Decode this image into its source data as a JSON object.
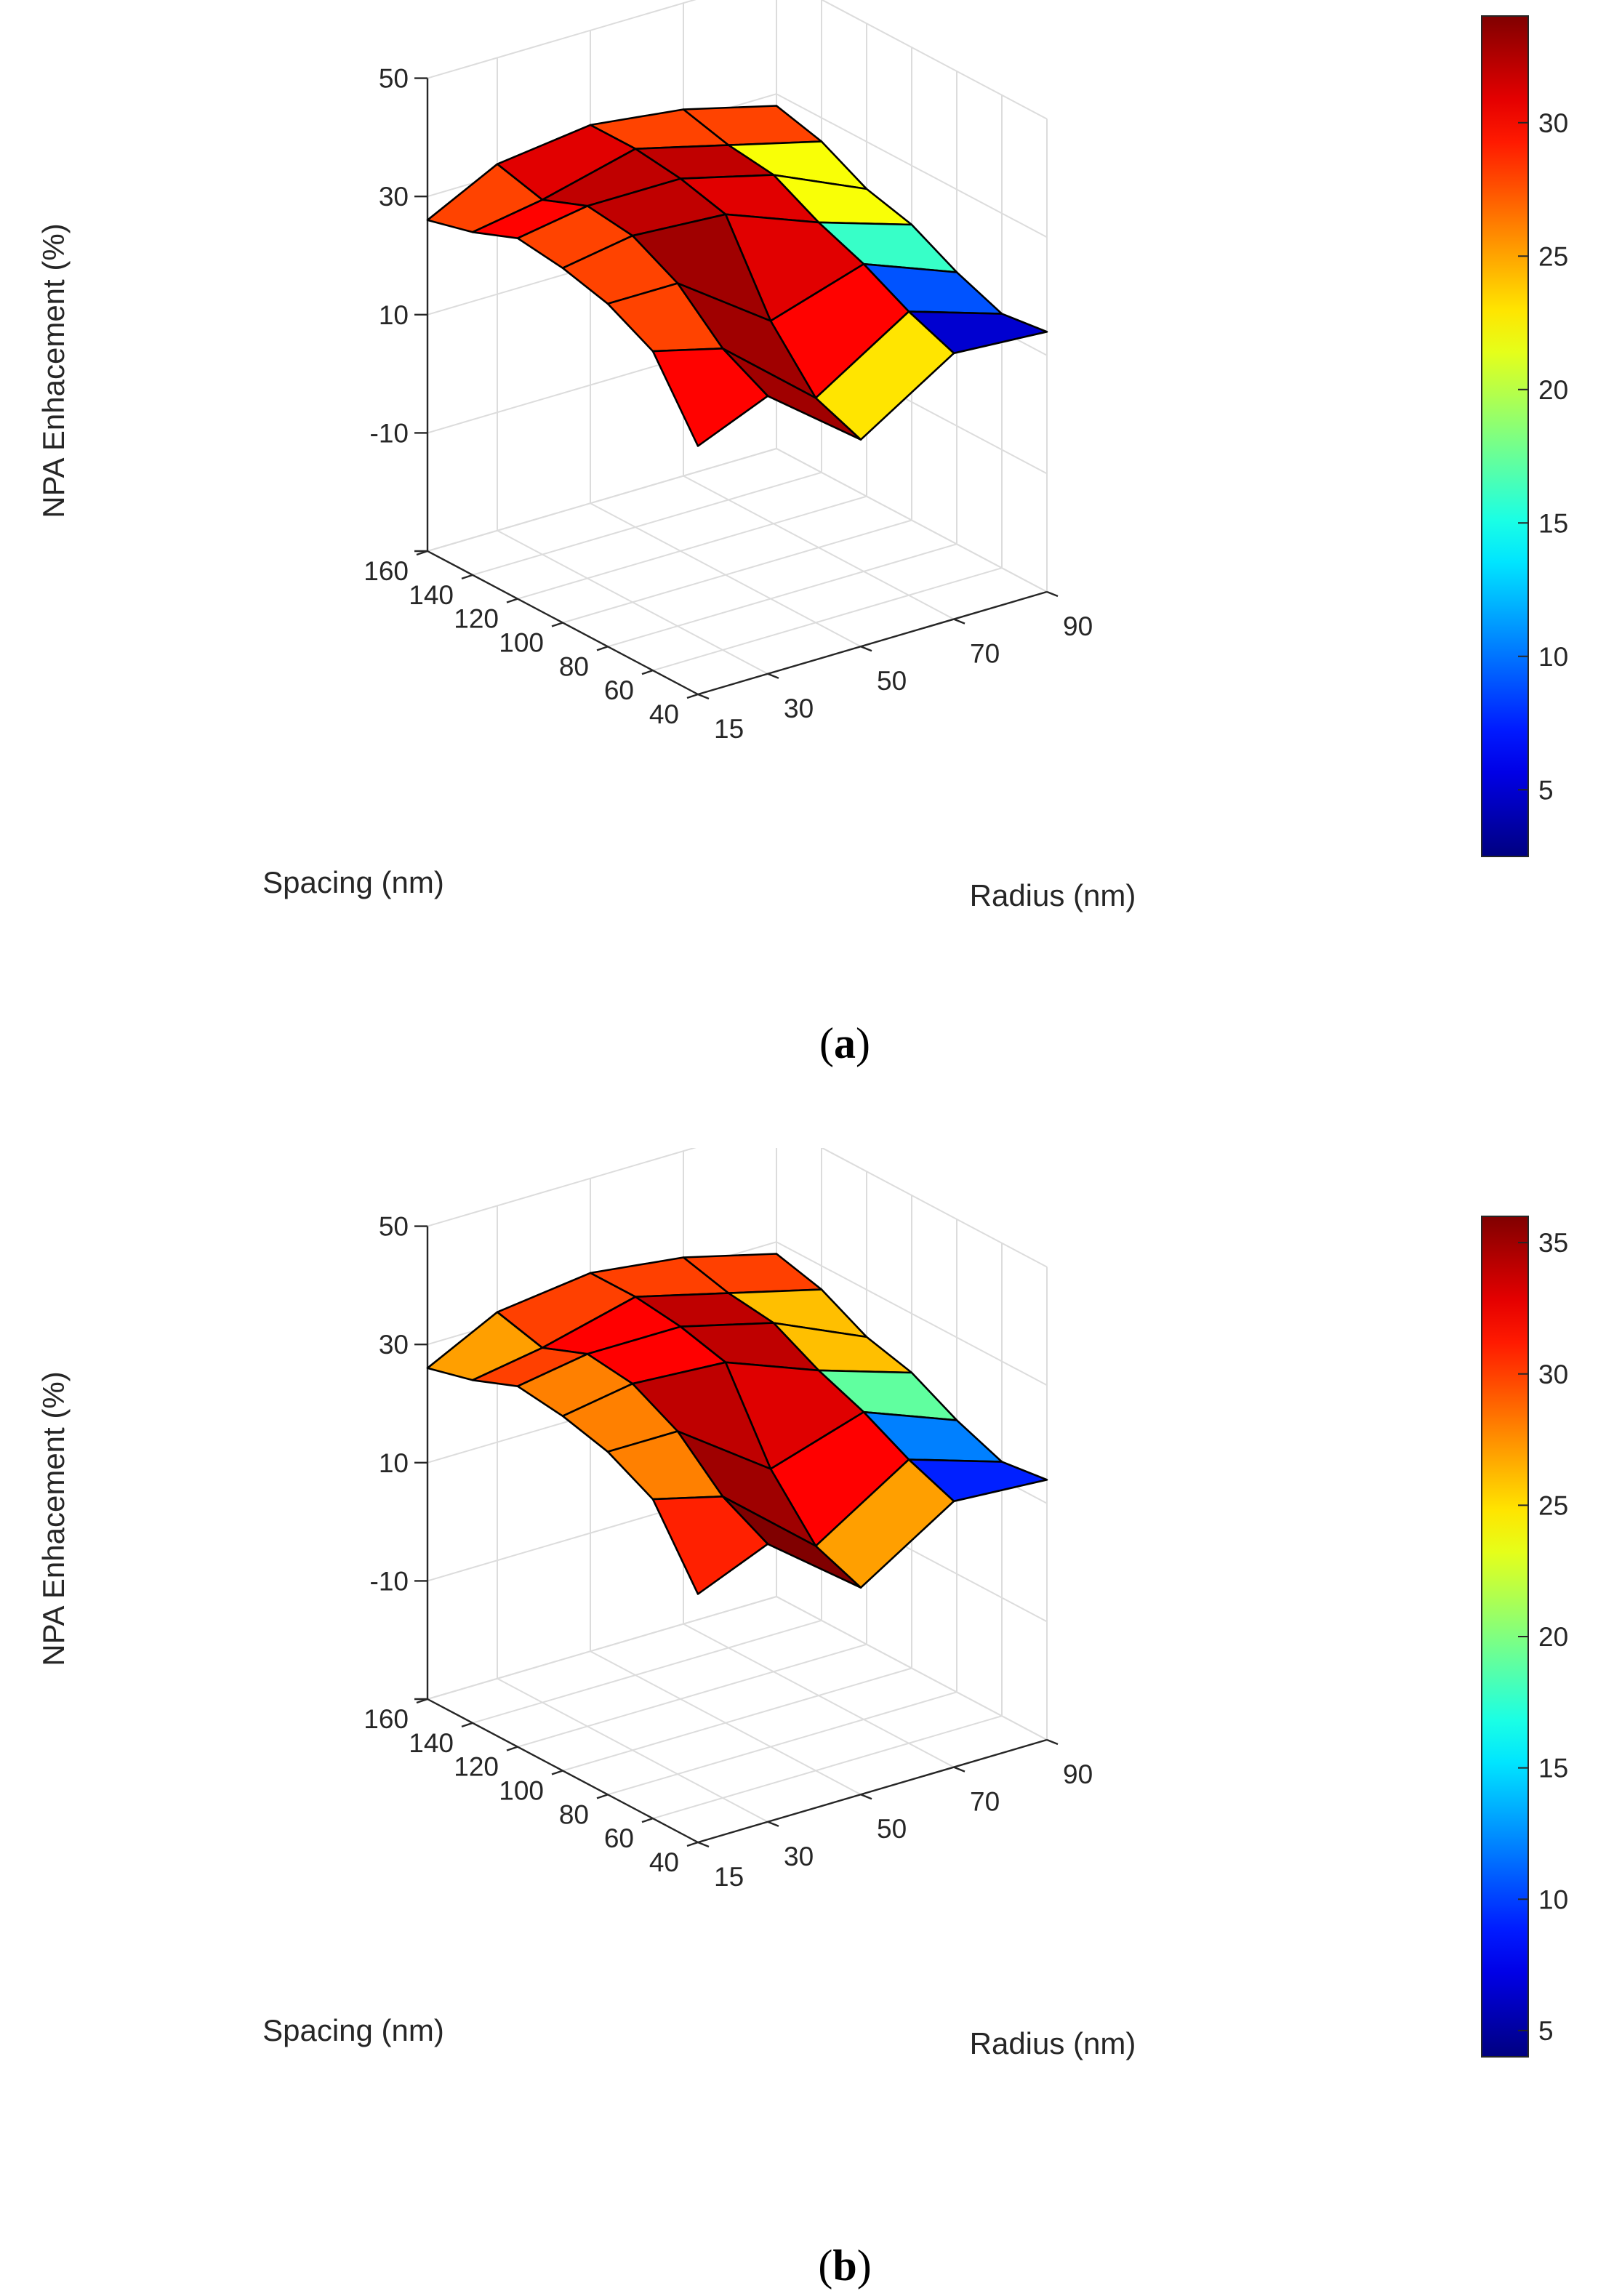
{
  "chart_data": [
    {
      "type": "surface",
      "caption_letter": "a",
      "zlabel": "NPA Enhacement (%)",
      "xlabel": "Spacing (nm)",
      "ylabel": "Radius (nm)",
      "spacing_ticks": [
        "160",
        "140",
        "120",
        "100",
        "80",
        "60",
        "40"
      ],
      "radius_ticks": [
        "15",
        "30",
        "50",
        "70",
        "90"
      ],
      "z_ticks": [
        "50",
        "30",
        "10",
        "-10"
      ],
      "zlim": [
        -30,
        50
      ],
      "colorbar": {
        "range": [
          2.5,
          34
        ],
        "ticks": [
          "30",
          "25",
          "20",
          "15",
          "10",
          "5"
        ]
      },
      "spacing": [
        40,
        60,
        80,
        100,
        120,
        140,
        160
      ],
      "radius": [
        15,
        30,
        50,
        70,
        90
      ],
      "z": [
        [
          12,
          17,
          5,
          15,
          14
        ],
        [
          24,
          21,
          8,
          18,
          13
        ],
        [
          28,
          28,
          17,
          22,
          16
        ],
        [
          30,
          32,
          31,
          25,
          20
        ],
        [
          31,
          33,
          33,
          29,
          22
        ],
        [
          28,
          30,
          34,
          30,
          26
        ],
        [
          26,
          32,
          34,
          32,
          28
        ]
      ],
      "cell_values": [
        [
          30,
          33,
          23,
          5
        ],
        [
          28,
          33,
          30,
          9
        ],
        [
          28,
          33,
          31,
          16
        ],
        [
          28,
          32,
          31,
          22
        ],
        [
          30,
          32,
          32,
          22
        ],
        [
          28,
          31,
          28,
          28
        ]
      ]
    },
    {
      "type": "surface",
      "caption_letter": "b",
      "zlabel": "NPA Enhacement (%)",
      "xlabel": "Spacing (nm)",
      "ylabel": "Radius (nm)",
      "spacing_ticks": [
        "160",
        "140",
        "120",
        "100",
        "80",
        "60",
        "40"
      ],
      "radius_ticks": [
        "15",
        "30",
        "50",
        "70",
        "90"
      ],
      "z_ticks": [
        "50",
        "30",
        "10",
        "-10"
      ],
      "zlim": [
        -30,
        50
      ],
      "colorbar": {
        "range": [
          4,
          36
        ],
        "ticks": [
          "35",
          "30",
          "25",
          "20",
          "15",
          "10",
          "5"
        ]
      },
      "spacing": [
        40,
        60,
        80,
        100,
        120,
        140,
        160
      ],
      "radius": [
        15,
        30,
        50,
        70,
        90
      ],
      "z": [
        [
          12,
          17,
          5,
          15,
          14
        ],
        [
          24,
          21,
          8,
          18,
          13
        ],
        [
          28,
          28,
          17,
          22,
          16
        ],
        [
          30,
          32,
          31,
          25,
          20
        ],
        [
          31,
          33,
          33,
          29,
          22
        ],
        [
          28,
          30,
          34,
          30,
          26
        ],
        [
          26,
          32,
          34,
          32,
          28
        ]
      ],
      "cell_values": [
        [
          31,
          36,
          27,
          9
        ],
        [
          28,
          35,
          32,
          12
        ],
        [
          28,
          34,
          33,
          19
        ],
        [
          28,
          32,
          34,
          26
        ],
        [
          30,
          32,
          34,
          26
        ],
        [
          27,
          30,
          30,
          30
        ]
      ]
    }
  ]
}
